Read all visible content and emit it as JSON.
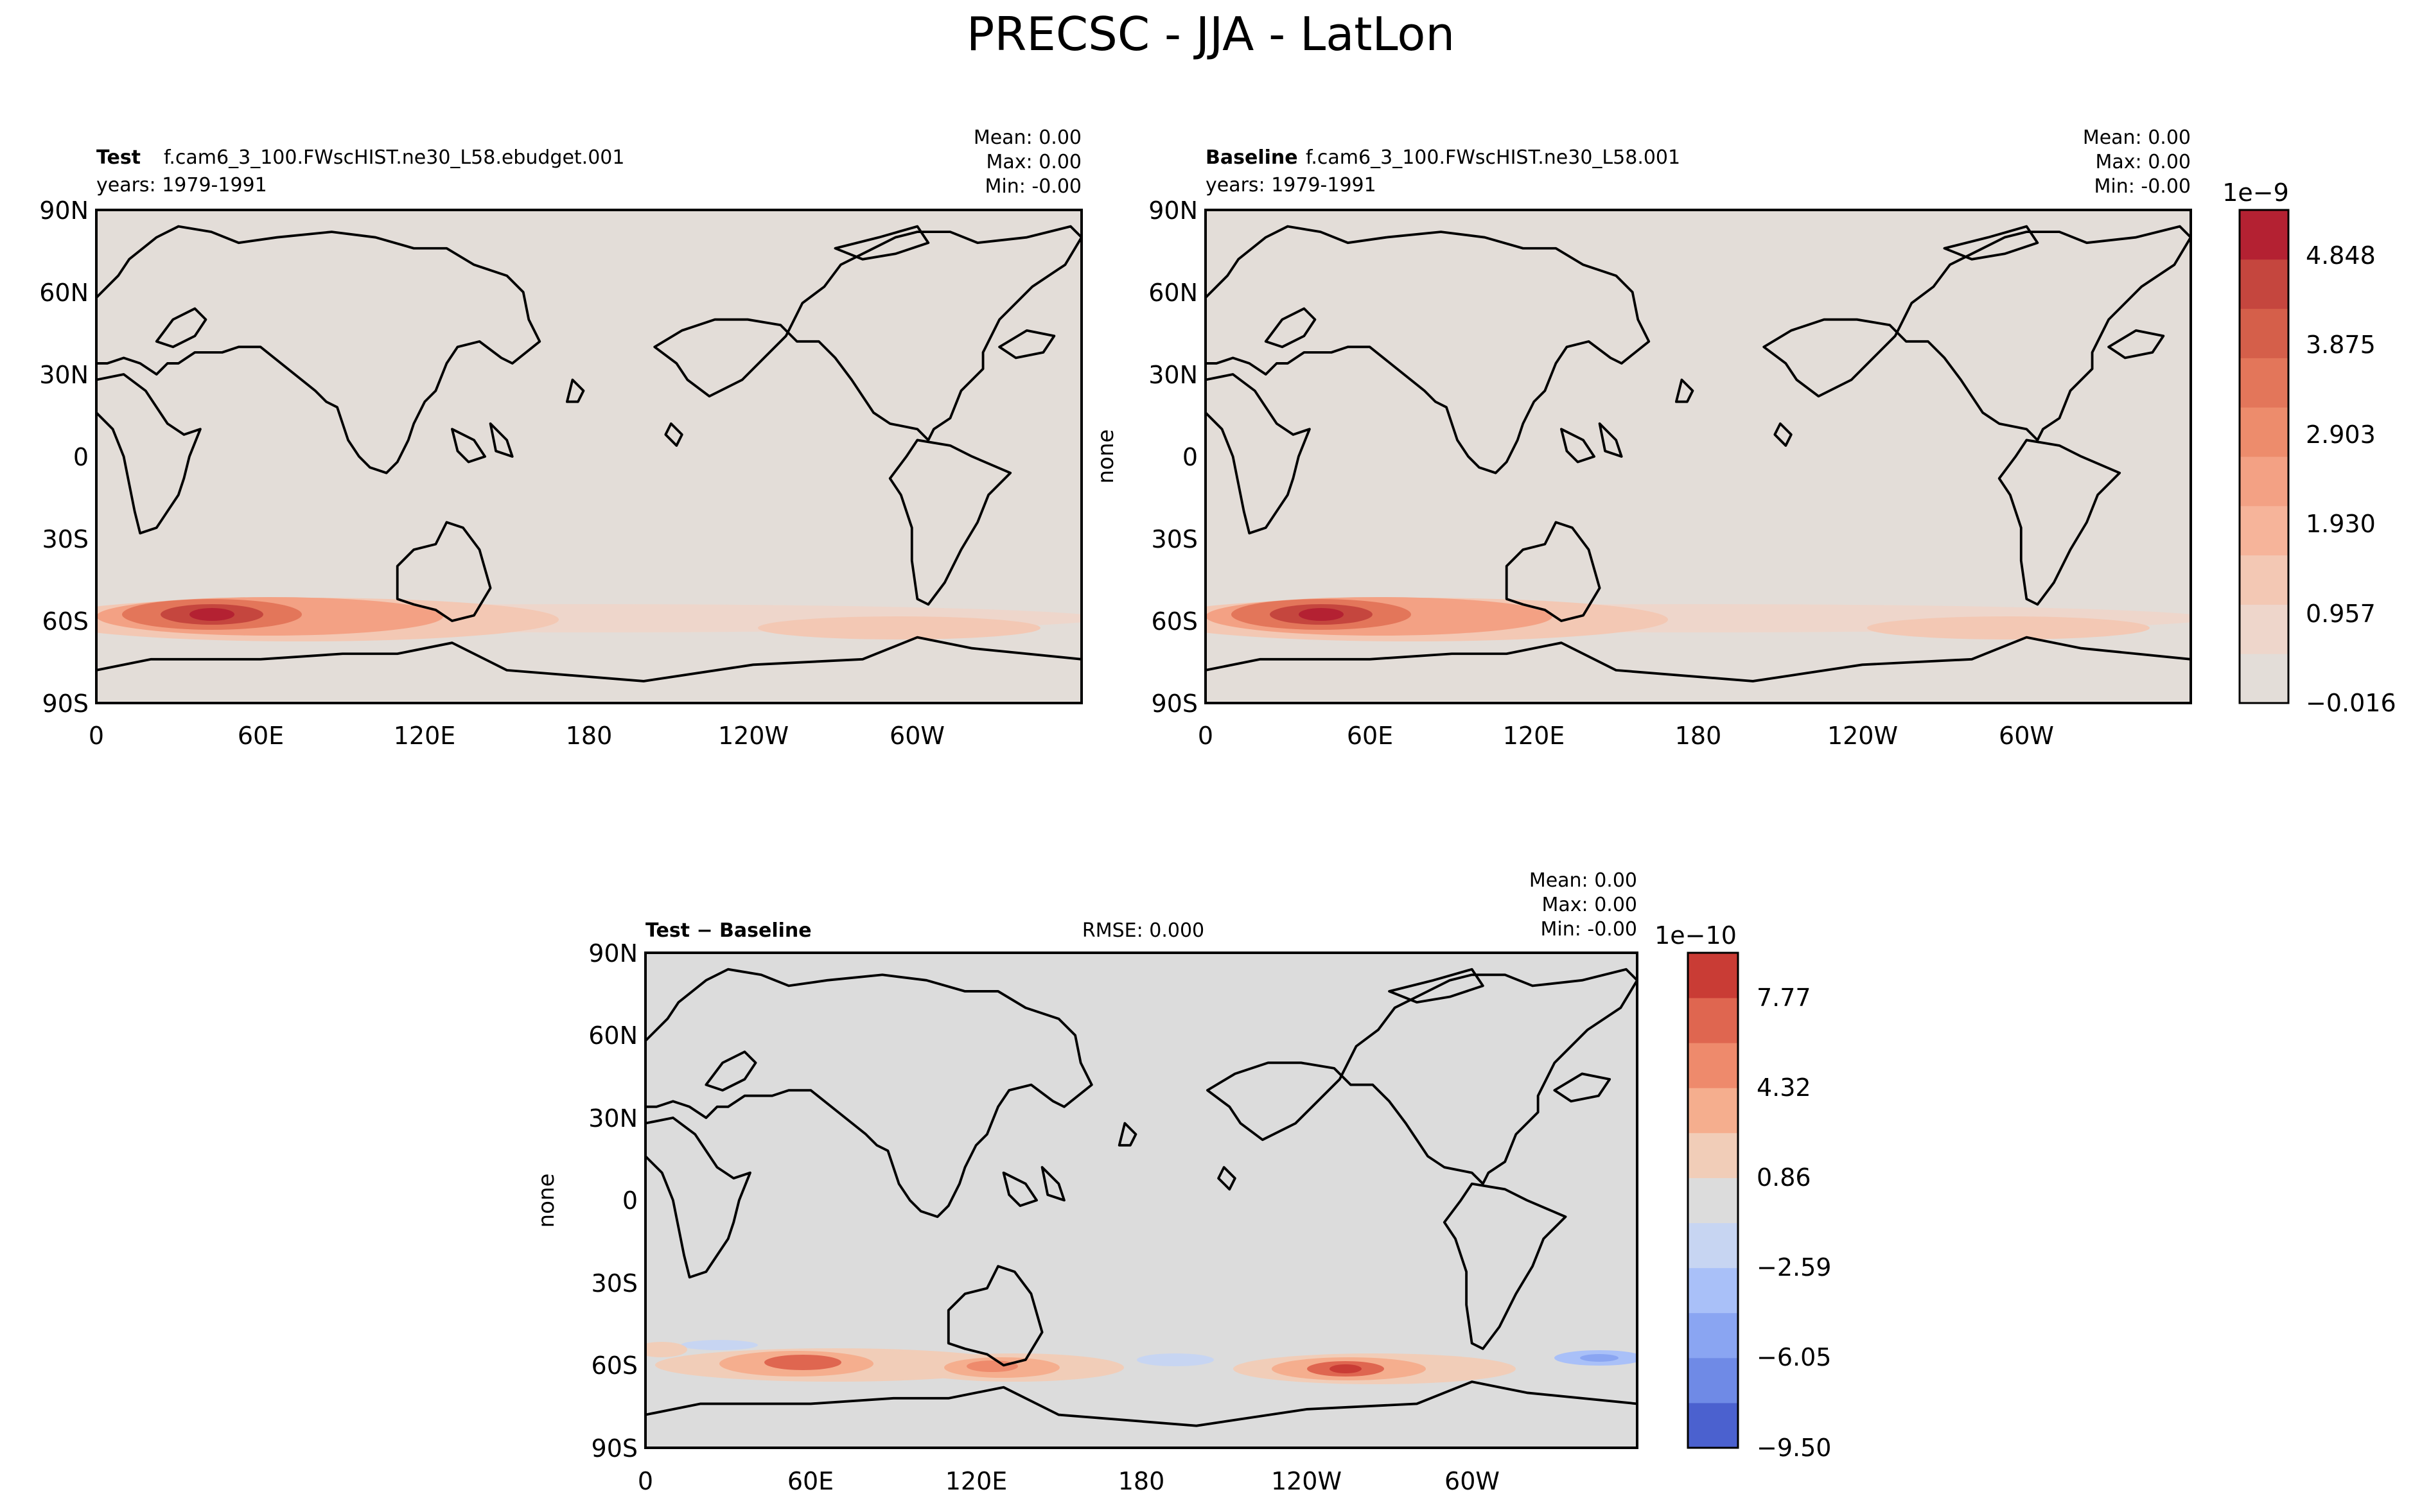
{
  "figure": {
    "title": "PRECSC - JJA - LatLon"
  },
  "colors": {
    "map_background_top": "#e3ddd8",
    "map_background_diff": "#dcdcdc",
    "top_levels": [
      "#e3ddd8",
      "#eed6cb",
      "#f3c8b4",
      "#f6b49a",
      "#f3a184",
      "#ed8c6c",
      "#e3765a",
      "#d55f4a",
      "#c5463e",
      "#b42132"
    ],
    "diff_levels": [
      "#4b61cf",
      "#6f8ae6",
      "#8aa5f2",
      "#a9c0f8",
      "#c7d5f2",
      "#dcdcdc",
      "#f1cdb8",
      "#f5ae8e",
      "#ee8a6c",
      "#df6650",
      "#c93c35"
    ]
  },
  "panels": {
    "test": {
      "label": "Test",
      "case": "f.cam6_3_100.FWscHIST.ne30_L58.ebudget.001",
      "years": "years: 1979-1991",
      "stats": [
        "Mean:  0.00",
        "Max:  0.00",
        "Min: -0.00"
      ]
    },
    "baseline": {
      "label": "Baseline",
      "case": "f.cam6_3_100.FWscHIST.ne30_L58.001",
      "years": "years: 1979-1991",
      "ylabel": "none",
      "stats": [
        "Mean:  0.00",
        "Max:  0.00",
        "Min: -0.00"
      ]
    },
    "diff": {
      "label": "Test − Baseline",
      "rmse": "RMSE: 0.000",
      "ylabel": "none",
      "stats": [
        "Mean:  0.00",
        "Max:  0.00",
        "Min: -0.00"
      ]
    }
  },
  "colorbars": {
    "top": {
      "exponent": "1e−9",
      "ticks": [
        "4.848",
        "3.875",
        "2.903",
        "1.930",
        "0.957",
        "−0.016"
      ]
    },
    "diff": {
      "exponent": "1e−10",
      "ticks": [
        "7.77",
        "4.32",
        "0.86",
        "−2.59",
        "−6.05",
        "−9.50"
      ]
    }
  },
  "chart_data": [
    {
      "type": "heatmap",
      "title": "Test",
      "xlabel": "",
      "ylabel": "",
      "xticks": [
        "0",
        "60E",
        "120E",
        "180",
        "120W",
        "60W"
      ],
      "yticks": [
        "90N",
        "60N",
        "30N",
        "0",
        "30S",
        "60S",
        "90S"
      ],
      "xlim": [
        0,
        360
      ],
      "ylim": [
        -90,
        90
      ],
      "units_multiplier": "1e-9",
      "color_levels": [
        -0.016,
        0.957,
        1.93,
        2.903,
        3.875,
        4.848
      ],
      "features": [
        {
          "lon": 48,
          "lat": -58,
          "value": 4.8
        },
        {
          "lon": 35,
          "lat": -57,
          "value": 3.5
        },
        {
          "lon": 75,
          "lat": -56,
          "value": 3.0
        },
        {
          "lon": 110,
          "lat": -60,
          "value": 2.2
        },
        {
          "lon": 250,
          "lat": -62,
          "value": 1.6
        },
        {
          "lon": 350,
          "lat": -55,
          "value": 0.9
        }
      ]
    },
    {
      "type": "heatmap",
      "title": "Baseline",
      "xlabel": "",
      "ylabel": "none",
      "xticks": [
        "0",
        "60E",
        "120E",
        "180",
        "120W",
        "60W"
      ],
      "yticks": [
        "90N",
        "60N",
        "30N",
        "0",
        "30S",
        "60S",
        "90S"
      ],
      "xlim": [
        0,
        360
      ],
      "ylim": [
        -90,
        90
      ],
      "units_multiplier": "1e-9",
      "color_levels": [
        -0.016,
        0.957,
        1.93,
        2.903,
        3.875,
        4.848
      ],
      "features": [
        {
          "lon": 48,
          "lat": -58,
          "value": 4.6
        },
        {
          "lon": 35,
          "lat": -57,
          "value": 3.4
        },
        {
          "lon": 75,
          "lat": -56,
          "value": 2.9
        },
        {
          "lon": 110,
          "lat": -60,
          "value": 2.1
        },
        {
          "lon": 250,
          "lat": -62,
          "value": 1.5
        },
        {
          "lon": 350,
          "lat": -55,
          "value": 0.9
        }
      ]
    },
    {
      "type": "heatmap",
      "title": "Test − Baseline",
      "xlabel": "",
      "ylabel": "none",
      "xticks": [
        "0",
        "60E",
        "120E",
        "180",
        "120W",
        "60W"
      ],
      "yticks": [
        "90N",
        "60N",
        "30N",
        "0",
        "30S",
        "60S",
        "90S"
      ],
      "xlim": [
        0,
        360
      ],
      "ylim": [
        -90,
        90
      ],
      "units_multiplier": "1e-10",
      "color_levels": [
        -9.5,
        -6.05,
        -2.59,
        0.86,
        4.32,
        7.77
      ],
      "features": [
        {
          "lon": 55,
          "lat": -60,
          "value": 7.5
        },
        {
          "lon": 130,
          "lat": -61,
          "value": 5.0
        },
        {
          "lon": 255,
          "lat": -62,
          "value": 8.0
        },
        {
          "lon": 20,
          "lat": -60,
          "value": 2.0
        },
        {
          "lon": 335,
          "lat": -58,
          "value": -6.0
        },
        {
          "lon": 190,
          "lat": -58,
          "value": -2.5
        }
      ]
    }
  ]
}
